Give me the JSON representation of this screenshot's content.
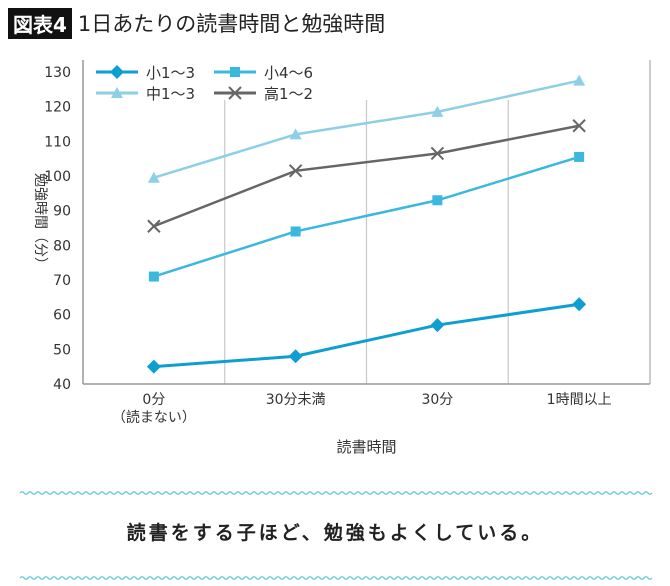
{
  "title": {
    "label": "図表4",
    "text": "1日あたりの読書時間と勉強時間"
  },
  "caption": "読書をする子ほど、勉強もよくしている。",
  "chart_data": {
    "type": "line",
    "title": "1日あたりの読書時間と勉強時間",
    "xlabel": "読書時間",
    "ylabel": "勉強時間（分）",
    "categories": [
      [
        "0分",
        "（読まない）"
      ],
      [
        "30分未満"
      ],
      [
        "30分"
      ],
      [
        "1時間以上"
      ]
    ],
    "ylim": [
      40,
      130
    ],
    "yticks": [
      40,
      50,
      60,
      70,
      80,
      90,
      100,
      110,
      120,
      130
    ],
    "grid": "vertical",
    "legend": "top-left",
    "series": [
      {
        "name": "小1～3",
        "values": [
          45,
          48,
          57,
          63
        ],
        "color": "#0e9fd0",
        "marker": "diamond"
      },
      {
        "name": "小4～6",
        "values": [
          71,
          84,
          93,
          105.5
        ],
        "color": "#3ab8de",
        "marker": "square"
      },
      {
        "name": "中1～3",
        "values": [
          99.5,
          112,
          118.5,
          127.5
        ],
        "color": "#8ccfe6",
        "marker": "triangle"
      },
      {
        "name": "高1～2",
        "values": [
          85.5,
          101.5,
          106.5,
          114.5
        ],
        "color": "#666666",
        "marker": "x"
      }
    ]
  },
  "wave_color": "#5cc8dc"
}
